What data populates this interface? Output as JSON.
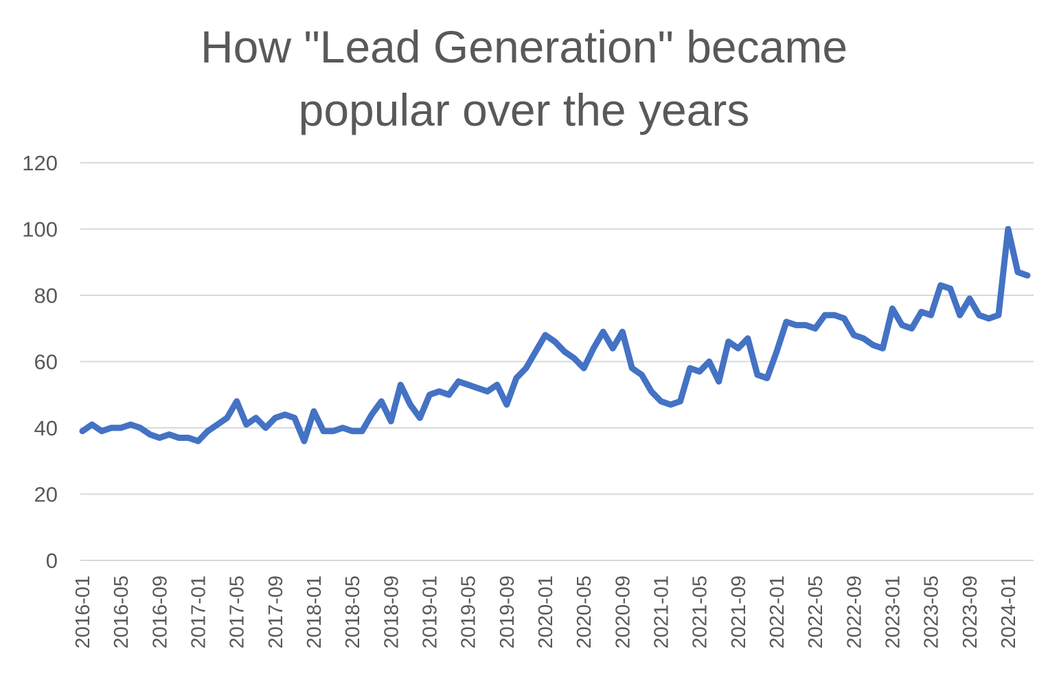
{
  "chart_data": {
    "type": "line",
    "title": "How \"Lead Generation\" became popular over the years",
    "title_lines": [
      "How \"Lead Generation\" became",
      "popular over the years"
    ],
    "xlabel": "",
    "ylabel": "",
    "ylim": [
      0,
      120
    ],
    "yticks": [
      0,
      20,
      40,
      60,
      80,
      100,
      120
    ],
    "xticks": [
      "2016-01",
      "2016-05",
      "2016-09",
      "2017-01",
      "2017-05",
      "2017-09",
      "2018-01",
      "2018-05",
      "2018-09",
      "2019-01",
      "2019-05",
      "2019-09",
      "2020-01",
      "2020-05",
      "2020-09",
      "2021-01",
      "2021-05",
      "2021-09",
      "2022-01",
      "2022-05",
      "2022-09",
      "2023-01",
      "2023-05",
      "2023-09",
      "2024-01"
    ],
    "xtick_every_n_months": 4,
    "grid": "horizontal",
    "legend_position": "none",
    "x": [
      "2016-01",
      "2016-02",
      "2016-03",
      "2016-04",
      "2016-05",
      "2016-06",
      "2016-07",
      "2016-08",
      "2016-09",
      "2016-10",
      "2016-11",
      "2016-12",
      "2017-01",
      "2017-02",
      "2017-03",
      "2017-04",
      "2017-05",
      "2017-06",
      "2017-07",
      "2017-08",
      "2017-09",
      "2017-10",
      "2017-11",
      "2017-12",
      "2018-01",
      "2018-02",
      "2018-03",
      "2018-04",
      "2018-05",
      "2018-06",
      "2018-07",
      "2018-08",
      "2018-09",
      "2018-10",
      "2018-11",
      "2018-12",
      "2019-01",
      "2019-02",
      "2019-03",
      "2019-04",
      "2019-05",
      "2019-06",
      "2019-07",
      "2019-08",
      "2019-09",
      "2019-10",
      "2019-11",
      "2019-12",
      "2020-01",
      "2020-02",
      "2020-03",
      "2020-04",
      "2020-05",
      "2020-06",
      "2020-07",
      "2020-08",
      "2020-09",
      "2020-10",
      "2020-11",
      "2020-12",
      "2021-01",
      "2021-02",
      "2021-03",
      "2021-04",
      "2021-05",
      "2021-06",
      "2021-07",
      "2021-08",
      "2021-09",
      "2021-10",
      "2021-11",
      "2021-12",
      "2022-01",
      "2022-02",
      "2022-03",
      "2022-04",
      "2022-05",
      "2022-06",
      "2022-07",
      "2022-08",
      "2022-09",
      "2022-10",
      "2022-11",
      "2022-12",
      "2023-01",
      "2023-02",
      "2023-03",
      "2023-04",
      "2023-05",
      "2023-06",
      "2023-07",
      "2023-08",
      "2023-09",
      "2023-10",
      "2023-11",
      "2023-12",
      "2024-01",
      "2024-02",
      "2024-03"
    ],
    "values": [
      39,
      41,
      39,
      40,
      40,
      41,
      40,
      38,
      37,
      38,
      37,
      37,
      36,
      39,
      41,
      43,
      48,
      41,
      43,
      40,
      43,
      44,
      43,
      36,
      45,
      39,
      39,
      40,
      39,
      39,
      44,
      48,
      42,
      53,
      47,
      43,
      50,
      51,
      50,
      54,
      53,
      52,
      51,
      53,
      47,
      55,
      58,
      63,
      68,
      66,
      63,
      61,
      58,
      64,
      69,
      64,
      69,
      58,
      56,
      51,
      48,
      47,
      48,
      58,
      57,
      60,
      54,
      66,
      64,
      67,
      56,
      55,
      63,
      72,
      71,
      71,
      70,
      74,
      74,
      73,
      68,
      67,
      65,
      64,
      76,
      71,
      70,
      75,
      74,
      83,
      82,
      74,
      79,
      74,
      73,
      74,
      100,
      87,
      86
    ],
    "colors": {
      "line": "#4472C4",
      "grid": "#D9D9D9",
      "text": "#595959",
      "background": "#FFFFFF"
    }
  }
}
